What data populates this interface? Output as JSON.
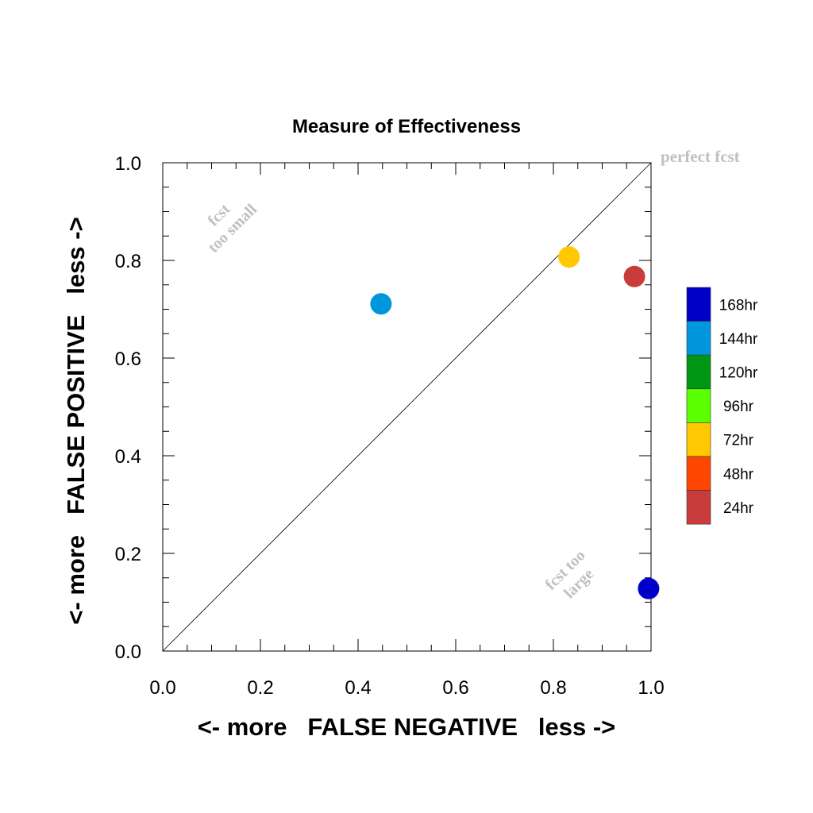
{
  "chart_data": {
    "type": "scatter",
    "title": "Measure of Effectiveness",
    "xlabel": "<- more   FALSE NEGATIVE   less ->",
    "ylabel": "<- more   FALSE POSITIVE   less ->",
    "xlim": [
      0,
      1
    ],
    "ylim": [
      0,
      1
    ],
    "x_ticks": [
      "0.0",
      "0.2",
      "0.4",
      "0.6",
      "0.8",
      "1.0"
    ],
    "y_ticks": [
      "0.0",
      "0.2",
      "0.4",
      "0.6",
      "0.8",
      "1.0"
    ],
    "grid": false,
    "diagonal_reference_line": true,
    "legend_position": "right",
    "annotations": {
      "perfect": "perfect fcst",
      "too_small_line1": "fcst",
      "too_small_line2": "too small",
      "too_large_line1": "fcst too",
      "too_large_line2": "large"
    },
    "legend": [
      {
        "label": "168hr",
        "color": "#0000c8"
      },
      {
        "label": "144hr",
        "color": "#0096dc"
      },
      {
        "label": "120hr",
        "color": "#009614"
      },
      {
        "label": "96hr",
        "color": "#5aff00"
      },
      {
        "label": "72hr",
        "color": "#ffc800"
      },
      {
        "label": "48hr",
        "color": "#ff4600"
      },
      {
        "label": "24hr",
        "color": "#c83c3c"
      }
    ],
    "points": [
      {
        "series": "168hr",
        "x": 0.995,
        "y": 0.128,
        "color": "#0000c8"
      },
      {
        "series": "144hr",
        "x": 0.447,
        "y": 0.711,
        "color": "#0096dc"
      },
      {
        "series": "72hr",
        "x": 0.832,
        "y": 0.807,
        "color": "#ffc800"
      },
      {
        "series": "24hr",
        "x": 0.966,
        "y": 0.767,
        "color": "#c83c3c"
      }
    ]
  }
}
